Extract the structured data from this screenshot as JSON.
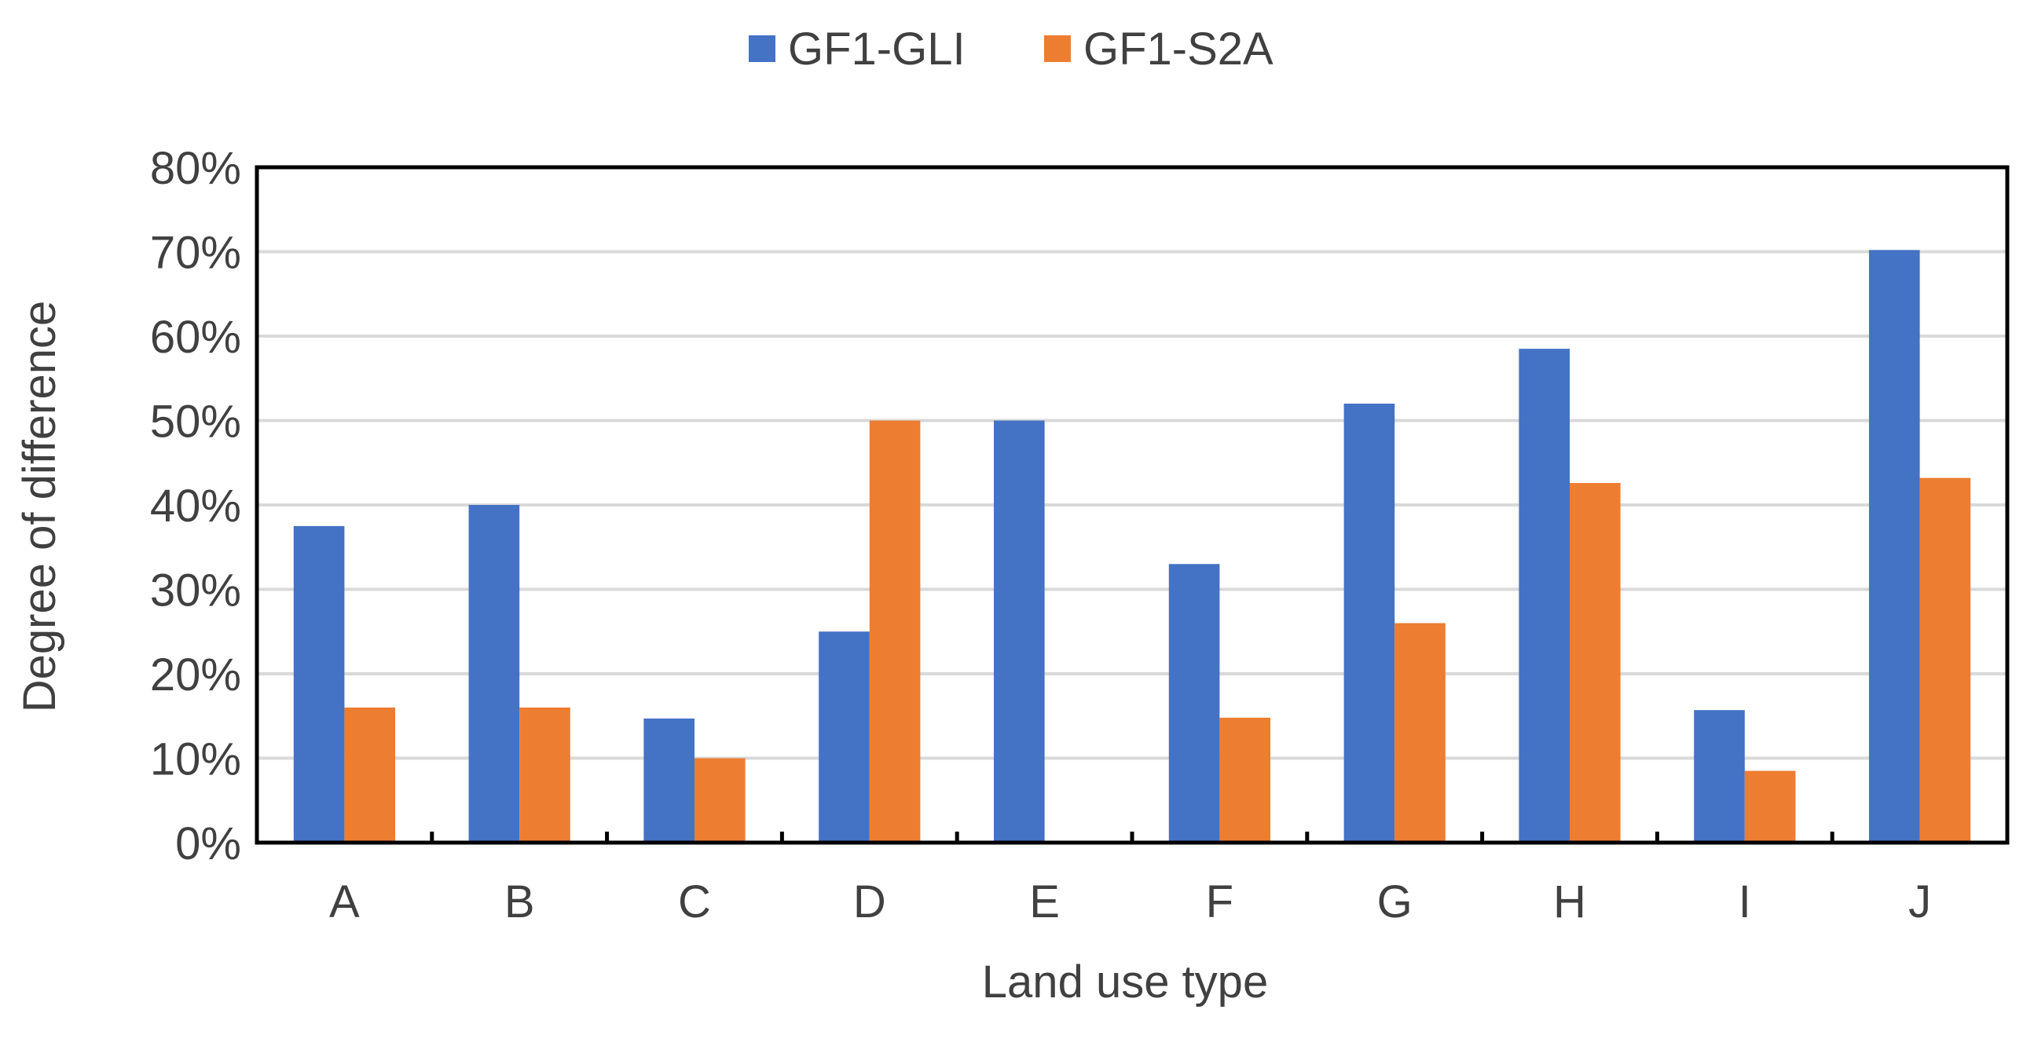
{
  "chart_data": {
    "type": "bar",
    "title": "",
    "xlabel": "Land use type",
    "ylabel": "Degree of difference",
    "categories": [
      "A",
      "B",
      "C",
      "D",
      "E",
      "F",
      "G",
      "H",
      "I",
      "J"
    ],
    "series": [
      {
        "name": "GF1-GLI",
        "color": "#4472c4",
        "values": [
          37.5,
          40.0,
          14.7,
          25.0,
          50.0,
          33.0,
          52.0,
          58.5,
          15.7,
          70.2
        ]
      },
      {
        "name": "GF1-S2A",
        "color": "#ed7d31",
        "values": [
          16.0,
          16.0,
          10.0,
          50.0,
          0,
          14.8,
          26.0,
          42.6,
          8.5,
          43.2
        ]
      }
    ],
    "ylim": [
      0,
      80
    ],
    "yticks": [
      0,
      10,
      20,
      30,
      40,
      50,
      60,
      70,
      80
    ],
    "ytick_format": "percent",
    "grid": true,
    "legend_position": "top-center"
  }
}
